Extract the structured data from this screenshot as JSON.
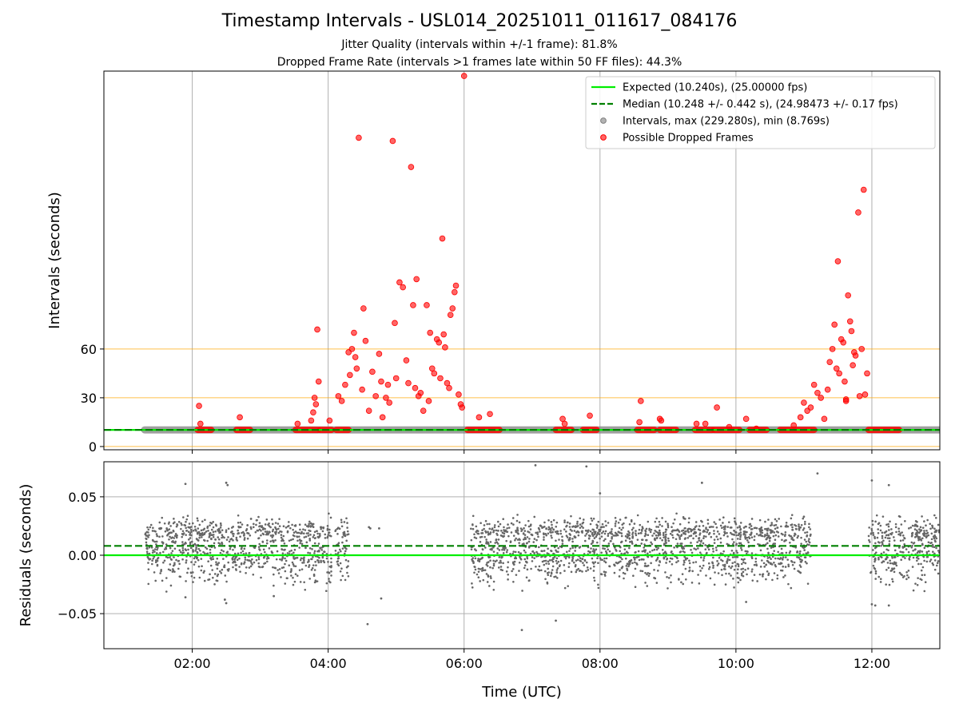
{
  "titles": {
    "main": "Timestamp Intervals - USL014_20251011_011617_084176",
    "subtitle1": "Jitter Quality (intervals within +/-1 frame): 81.8%",
    "subtitle2": "Dropped Frame Rate (intervals >1 frames late within 50 FF files): 44.3%"
  },
  "colors": {
    "expected": "#00ee00",
    "median": "#008000",
    "intervals": "#808080",
    "dropped": "#ff0000",
    "threshold": "#ffa500",
    "residuals": "#666666"
  },
  "chart_data": [
    {
      "type": "scatter",
      "name": "intervals",
      "ylabel": "Intervals (seconds)",
      "xlim": [
        0.7,
        13.0
      ],
      "ylim": [
        -2,
        231
      ],
      "yticks": [
        0,
        30,
        60
      ],
      "ytick_labels": [
        "0",
        "30",
        "60"
      ],
      "hlines": [
        {
          "y": 10.24,
          "label": "Expected (10.240s), (25.00000 fps)",
          "style": "solid",
          "color": "#00ee00"
        },
        {
          "y": 10.248,
          "label": "Median (10.248 +/- 0.442 s), (24.98473 +/- 0.17 fps)",
          "style": "dashed",
          "color": "#008000"
        },
        {
          "y": 0,
          "style": "threshold",
          "color": "#ffa500"
        },
        {
          "y": 30,
          "style": "threshold",
          "color": "#ffa500"
        },
        {
          "y": 60,
          "style": "threshold",
          "color": "#ffa500"
        }
      ],
      "grid": "x",
      "legend_position": "upper-right",
      "legend": [
        "Expected (10.240s), (25.00000 fps)",
        "Median (10.248 +/- 0.442 s), (24.98473 +/- 0.17 fps)",
        "Intervals, max (229.280s), min (8.769s)",
        "Possible Dropped Frames"
      ],
      "intervals_band": {
        "x_start": 1.3,
        "x_end": 13.0,
        "y": 10.24
      },
      "dropped_baseline_segments": [
        [
          2.08,
          2.28
        ],
        [
          2.65,
          2.85
        ],
        [
          3.52,
          3.85
        ],
        [
          3.88,
          4.05
        ],
        [
          4.12,
          4.3
        ],
        [
          6.05,
          6.52
        ],
        [
          7.35,
          7.58
        ],
        [
          7.75,
          7.95
        ],
        [
          8.55,
          8.8
        ],
        [
          8.88,
          9.12
        ],
        [
          9.4,
          9.65
        ],
        [
          9.68,
          10.05
        ],
        [
          10.2,
          10.45
        ],
        [
          10.65,
          11.15
        ],
        [
          11.95,
          12.4
        ]
      ],
      "dropped_frames": [
        [
          2.1,
          25
        ],
        [
          2.12,
          14
        ],
        [
          2.7,
          18
        ],
        [
          3.55,
          14
        ],
        [
          3.8,
          30
        ],
        [
          3.82,
          26
        ],
        [
          3.84,
          72
        ],
        [
          3.86,
          40
        ],
        [
          3.78,
          21
        ],
        [
          3.75,
          16
        ],
        [
          4.02,
          16
        ],
        [
          4.15,
          31
        ],
        [
          4.2,
          28
        ],
        [
          4.25,
          38
        ],
        [
          4.3,
          58
        ],
        [
          4.32,
          44
        ],
        [
          4.35,
          60
        ],
        [
          4.38,
          70
        ],
        [
          4.4,
          55
        ],
        [
          4.42,
          48
        ],
        [
          4.45,
          190
        ],
        [
          4.5,
          35
        ],
        [
          4.52,
          85
        ],
        [
          4.55,
          65
        ],
        [
          4.6,
          22
        ],
        [
          4.65,
          46
        ],
        [
          4.7,
          31
        ],
        [
          4.75,
          57
        ],
        [
          4.78,
          40
        ],
        [
          4.8,
          18
        ],
        [
          4.85,
          30
        ],
        [
          4.88,
          38
        ],
        [
          4.9,
          27
        ],
        [
          4.95,
          188
        ],
        [
          4.98,
          76
        ],
        [
          5.0,
          42
        ],
        [
          5.05,
          101
        ],
        [
          5.1,
          98
        ],
        [
          5.15,
          53
        ],
        [
          5.18,
          39
        ],
        [
          5.22,
          172
        ],
        [
          5.25,
          87
        ],
        [
          5.28,
          36
        ],
        [
          5.3,
          103
        ],
        [
          5.33,
          31
        ],
        [
          5.36,
          33
        ],
        [
          5.4,
          22
        ],
        [
          5.45,
          87
        ],
        [
          5.48,
          28
        ],
        [
          5.5,
          70
        ],
        [
          5.53,
          48
        ],
        [
          5.56,
          45
        ],
        [
          5.6,
          66
        ],
        [
          5.63,
          64
        ],
        [
          5.65,
          42
        ],
        [
          5.68,
          128
        ],
        [
          5.7,
          69
        ],
        [
          5.72,
          61
        ],
        [
          5.75,
          39
        ],
        [
          5.78,
          36
        ],
        [
          5.8,
          81
        ],
        [
          5.83,
          85
        ],
        [
          5.86,
          95
        ],
        [
          5.88,
          99
        ],
        [
          5.92,
          32
        ],
        [
          5.95,
          26
        ],
        [
          6.0,
          228
        ],
        [
          5.97,
          24
        ],
        [
          6.22,
          18
        ],
        [
          6.38,
          20
        ],
        [
          7.45,
          17
        ],
        [
          7.48,
          14
        ],
        [
          7.85,
          19
        ],
        [
          8.58,
          15
        ],
        [
          8.6,
          28
        ],
        [
          8.88,
          17
        ],
        [
          8.9,
          16
        ],
        [
          9.42,
          14
        ],
        [
          9.55,
          14
        ],
        [
          9.72,
          24
        ],
        [
          9.9,
          12
        ],
        [
          10.15,
          17
        ],
        [
          10.3,
          11
        ],
        [
          10.85,
          13
        ],
        [
          10.95,
          18
        ],
        [
          11.0,
          27
        ],
        [
          11.05,
          22
        ],
        [
          11.1,
          24
        ],
        [
          11.15,
          38
        ],
        [
          11.2,
          33
        ],
        [
          11.25,
          30
        ],
        [
          11.3,
          17
        ],
        [
          11.35,
          35
        ],
        [
          11.38,
          52
        ],
        [
          11.42,
          60
        ],
        [
          11.45,
          75
        ],
        [
          11.48,
          48
        ],
        [
          11.5,
          114
        ],
        [
          11.52,
          45
        ],
        [
          11.55,
          66
        ],
        [
          11.58,
          64
        ],
        [
          11.6,
          40
        ],
        [
          11.62,
          29
        ],
        [
          11.65,
          93
        ],
        [
          11.68,
          77
        ],
        [
          11.7,
          71
        ],
        [
          11.72,
          50
        ],
        [
          11.74,
          58
        ],
        [
          11.76,
          56
        ],
        [
          11.8,
          144
        ],
        [
          11.82,
          31
        ],
        [
          11.85,
          60
        ],
        [
          11.88,
          158
        ],
        [
          11.9,
          32
        ],
        [
          11.93,
          45
        ],
        [
          11.62,
          28
        ]
      ]
    },
    {
      "type": "scatter",
      "name": "residuals",
      "xlabel": "Time (UTC)",
      "ylabel": "Residuals (seconds)",
      "xlim": [
        0.7,
        13.0
      ],
      "ylim": [
        -0.08,
        0.08
      ],
      "yticks": [
        -0.05,
        0.0,
        0.05
      ],
      "ytick_labels": [
        "−0.05",
        "0.00",
        "0.05"
      ],
      "xticks": [
        2,
        4,
        6,
        8,
        10,
        12
      ],
      "xtick_labels": [
        "02:00",
        "04:00",
        "06:00",
        "08:00",
        "10:00",
        "12:00"
      ],
      "hlines": [
        {
          "y": 0.0,
          "style": "solid",
          "color": "#00ee00"
        },
        {
          "y": 0.008,
          "style": "dashed",
          "color": "#008000"
        }
      ],
      "grid": "both",
      "residual_clusters": [
        [
          1.3,
          4.05
        ],
        [
          4.1,
          4.3
        ],
        [
          6.1,
          11.1
        ],
        [
          11.95,
          13.0
        ]
      ],
      "residual_outliers": [
        [
          1.9,
          0.061
        ],
        [
          2.5,
          0.062
        ],
        [
          2.52,
          0.06
        ],
        [
          2.48,
          -0.038
        ],
        [
          2.5,
          -0.041
        ],
        [
          1.9,
          -0.036
        ],
        [
          4.6,
          0.024
        ],
        [
          4.62,
          0.023
        ],
        [
          4.58,
          -0.059
        ],
        [
          4.78,
          -0.037
        ],
        [
          4.75,
          0.023
        ],
        [
          3.2,
          -0.035
        ],
        [
          6.85,
          -0.064
        ],
        [
          7.05,
          0.077
        ],
        [
          7.35,
          -0.056
        ],
        [
          7.8,
          0.076
        ],
        [
          8.0,
          0.053
        ],
        [
          9.5,
          0.062
        ],
        [
          10.15,
          -0.04
        ],
        [
          11.2,
          0.07
        ],
        [
          10.95,
          -0.015
        ],
        [
          11.0,
          0.033
        ],
        [
          12.0,
          0.064
        ],
        [
          12.0,
          -0.042
        ],
        [
          12.25,
          -0.043
        ],
        [
          12.25,
          0.06
        ],
        [
          12.05,
          -0.043
        ]
      ]
    }
  ]
}
